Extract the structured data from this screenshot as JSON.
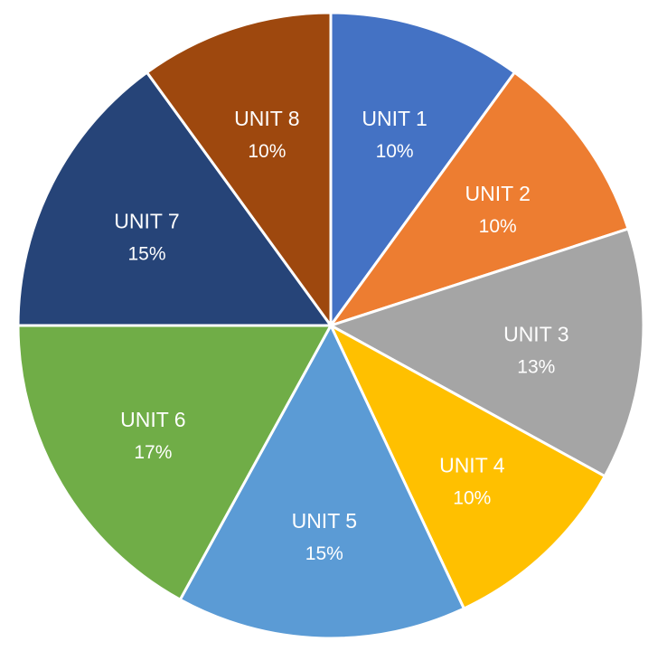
{
  "chart_data": {
    "type": "pie",
    "title": "",
    "start_angle_deg": 0,
    "direction": "clockwise",
    "slices": [
      {
        "label": "UNIT 1",
        "value": 10,
        "display": "10%",
        "color": "#4472C4"
      },
      {
        "label": "UNIT 2",
        "value": 10,
        "display": "10%",
        "color": "#ED7D31"
      },
      {
        "label": "UNIT 3",
        "value": 13,
        "display": "13%",
        "color": "#A5A5A5"
      },
      {
        "label": "UNIT 4",
        "value": 10,
        "display": "10%",
        "color": "#FFC000"
      },
      {
        "label": "UNIT 5",
        "value": 15,
        "display": "15%",
        "color": "#5B9BD5"
      },
      {
        "label": "UNIT 6",
        "value": 17,
        "display": "17%",
        "color": "#70AD47"
      },
      {
        "label": "UNIT 7",
        "value": 15,
        "display": "15%",
        "color": "#264478"
      },
      {
        "label": "UNIT 8",
        "value": 10,
        "display": "10%",
        "color": "#9E480E"
      }
    ]
  }
}
